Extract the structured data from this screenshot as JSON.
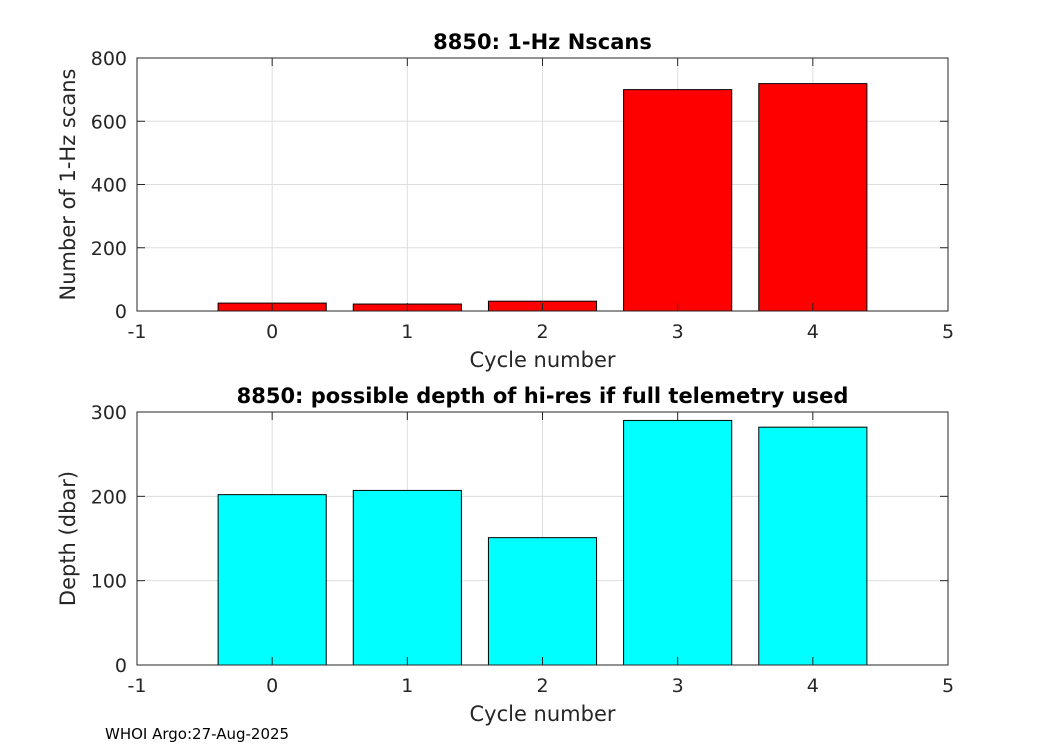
{
  "footer": "WHOI Argo:27-Aug-2025",
  "chart_data": [
    {
      "type": "bar",
      "title": "8850: 1-Hz Nscans",
      "xlabel": "Cycle number",
      "ylabel": "Number of 1-Hz scans",
      "x": [
        0,
        1,
        2,
        3,
        4
      ],
      "values": [
        25,
        22,
        31,
        700,
        719
      ],
      "xlim": [
        -1,
        5
      ],
      "ylim": [
        0,
        800
      ],
      "xticks": [
        -1,
        0,
        1,
        2,
        3,
        4,
        5
      ],
      "yticks": [
        0,
        200,
        400,
        600,
        800
      ],
      "bar_color": "#ff0000",
      "grid": true
    },
    {
      "type": "bar",
      "title": "8850: possible depth of hi-res if full telemetry used",
      "xlabel": "Cycle number",
      "ylabel": "Depth (dbar)",
      "x": [
        0,
        1,
        2,
        3,
        4
      ],
      "values": [
        202,
        207,
        151,
        290,
        282
      ],
      "xlim": [
        -1,
        5
      ],
      "ylim": [
        0,
        300
      ],
      "xticks": [
        -1,
        0,
        1,
        2,
        3,
        4,
        5
      ],
      "yticks": [
        0,
        100,
        200,
        300
      ],
      "bar_color": "#00ffff",
      "grid": true
    }
  ]
}
